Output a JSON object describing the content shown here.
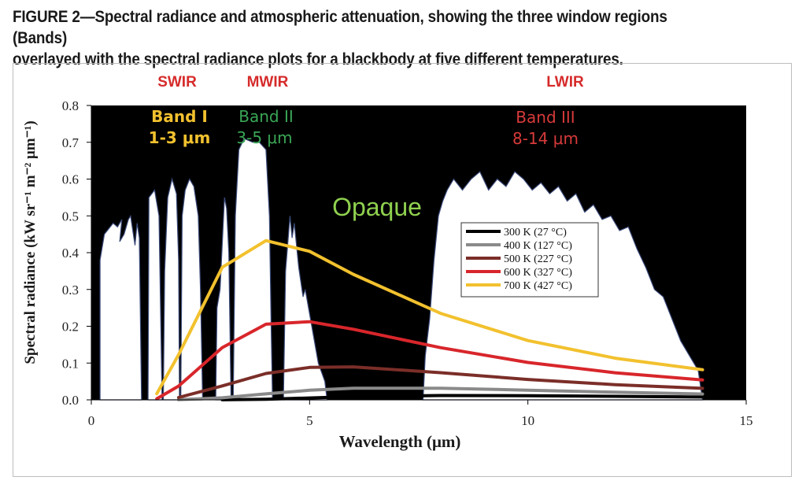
{
  "figure": {
    "caption_line1": "FIGURE 2—Spectral radiance and atmospheric attenuation, showing the three window regions (Bands)",
    "caption_line2": "overlayed with the spectral radiance plots for a blackbody at five different temperatures."
  },
  "chart_data": {
    "type": "line",
    "xlabel": "Wavelength (μm)",
    "ylabel": "Spectral radiance (kW sr⁻¹ m⁻² μm⁻¹)",
    "xlim": [
      0,
      15
    ],
    "ylim": [
      0,
      0.8
    ],
    "x_ticks": [
      "0",
      "5",
      "10",
      "15"
    ],
    "y_ticks": [
      "0.0",
      "0.1",
      "0.2",
      "0.3",
      "0.4",
      "0.5",
      "0.6",
      "0.7",
      "0.8"
    ],
    "regions": [
      {
        "label": "SWIR",
        "band": "Band I",
        "range": "1-3 μm",
        "color": "#f2c12e",
        "x_range": [
          1,
          3
        ]
      },
      {
        "label": "MWIR",
        "band": "Band II",
        "range": "3-5 μm",
        "color": "#3aa655",
        "x_range": [
          3,
          5
        ]
      },
      {
        "label": "LWIR",
        "band": "Band III",
        "range": "8-14 μm",
        "color": "#d83a3a",
        "x_range": [
          8,
          14
        ]
      }
    ],
    "annotation": "Opaque",
    "region_label_color": "#d62b2b",
    "opaque_color": "#8fd14f",
    "series": [
      {
        "name": "300 K (27 °C)",
        "color": "#000000",
        "values": [
          [
            3,
            0.0002
          ],
          [
            4,
            0.0018
          ],
          [
            5,
            0.0052
          ],
          [
            6,
            0.0087
          ],
          [
            8,
            0.0118
          ],
          [
            10,
            0.0113
          ],
          [
            12,
            0.0096
          ],
          [
            14,
            0.0077
          ]
        ]
      },
      {
        "name": "400 K (127 °C)",
        "color": "#8a8a8a",
        "values": [
          [
            2,
            0.0004
          ],
          [
            3,
            0.0055
          ],
          [
            4,
            0.0163
          ],
          [
            5,
            0.0262
          ],
          [
            6,
            0.0316
          ],
          [
            8,
            0.0316
          ],
          [
            10,
            0.0264
          ],
          [
            12,
            0.0207
          ],
          [
            14,
            0.0159
          ]
        ]
      },
      {
        "name": "500 K (227 °C)",
        "color": "#7b2e28",
        "values": [
          [
            2,
            0.0064
          ],
          [
            3,
            0.0378
          ],
          [
            4,
            0.0716
          ],
          [
            5,
            0.0882
          ],
          [
            6,
            0.0896
          ],
          [
            8,
            0.0738
          ],
          [
            10,
            0.0555
          ],
          [
            12,
            0.0413
          ],
          [
            14,
            0.0312
          ]
        ]
      },
      {
        "name": "600 K (327 °C)",
        "color": "#d8262b",
        "values": [
          [
            1.5,
            0.0029
          ],
          [
            2,
            0.0375
          ],
          [
            3,
            0.1421
          ],
          [
            4,
            0.2056
          ],
          [
            5,
            0.2123
          ],
          [
            6,
            0.1918
          ],
          [
            8,
            0.1418
          ],
          [
            10,
            0.1017
          ],
          [
            12,
            0.0735
          ],
          [
            14,
            0.0542
          ]
        ]
      },
      {
        "name": "700 K (427 °C)",
        "color": "#f2c12e",
        "values": [
          [
            1.5,
            0.0167
          ],
          [
            2,
            0.1227
          ],
          [
            3,
            0.3603
          ],
          [
            4,
            0.4328
          ],
          [
            5,
            0.4036
          ],
          [
            6,
            0.3412
          ],
          [
            8,
            0.2351
          ],
          [
            10,
            0.1611
          ],
          [
            12,
            0.1131
          ],
          [
            14,
            0.082
          ]
        ]
      }
    ]
  }
}
